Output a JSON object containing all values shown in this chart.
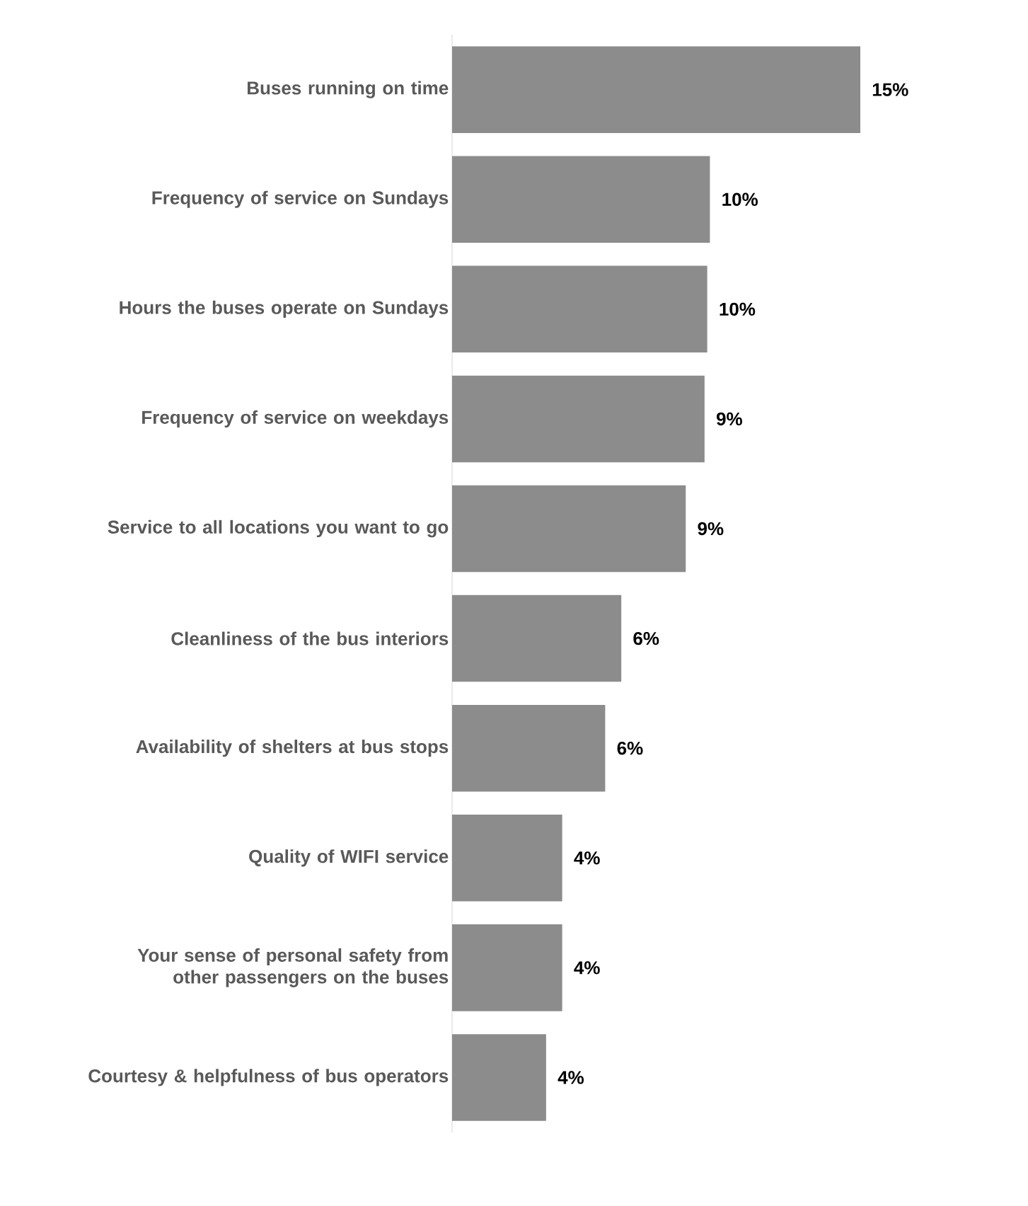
{
  "chart_data": {
    "type": "bar",
    "orientation": "horizontal",
    "categories": [
      "Buses running on time",
      "Frequency of service on Sundays",
      "Hours the buses operate on Sundays",
      "Frequency of service on weekdays",
      "Service to all locations you want to go",
      "Cleanliness of the bus interiors",
      "Availability of shelters at bus stops",
      "Quality of WIFI service",
      "Your sense of personal safety from other passengers on the buses",
      "Courtesy & helpfulness of bus operators"
    ],
    "values": [
      15.2,
      9.6,
      9.5,
      9.4,
      8.7,
      6.3,
      5.7,
      4.1,
      4.1,
      3.5
    ],
    "value_labels": [
      "15%",
      "10%",
      "10%",
      "9%",
      "9%",
      "6%",
      "6%",
      "4%",
      "4%",
      "4%"
    ],
    "color": "#8c8c8c"
  }
}
